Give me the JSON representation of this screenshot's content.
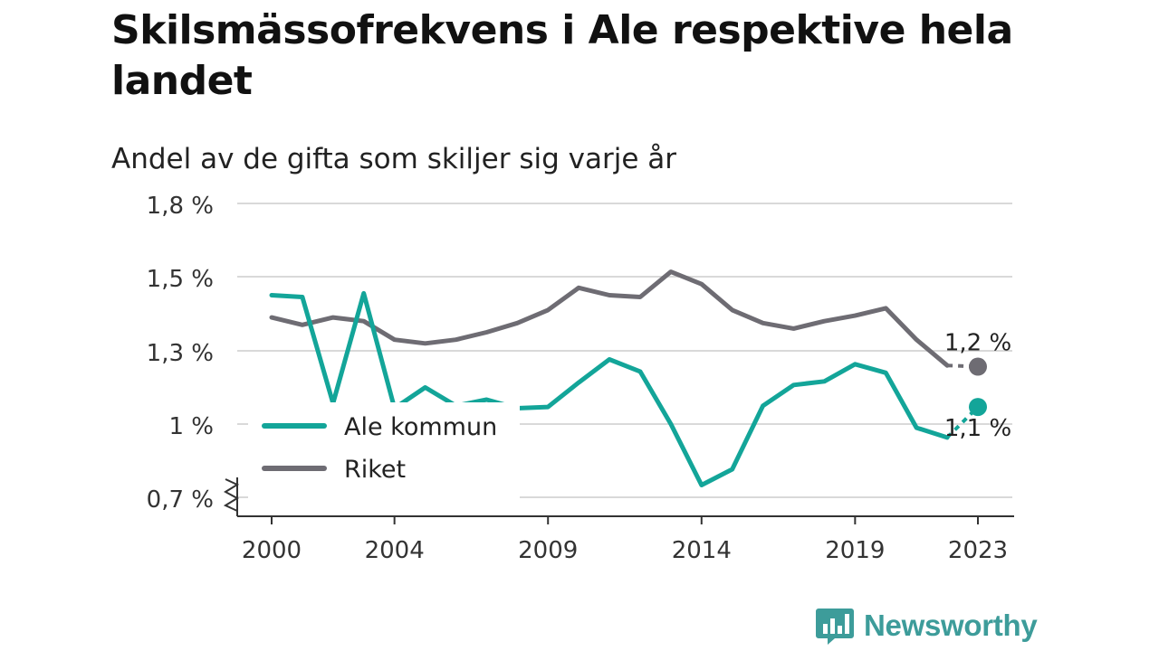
{
  "title": "Skilsmässofrekvens i Ale respektive hela landet",
  "subtitle": "Andel av de gifta som skiljer sig varje år",
  "brand": {
    "name": "Newsworthy"
  },
  "colors": {
    "ale": "#13a599",
    "riket": "#6e6c73",
    "grid": "#d9d9d9",
    "axis": "#333333"
  },
  "chart_data": {
    "type": "line",
    "x": [
      2000,
      2001,
      2002,
      2003,
      2004,
      2005,
      2006,
      2007,
      2008,
      2009,
      2010,
      2011,
      2012,
      2013,
      2014,
      2015,
      2016,
      2017,
      2018,
      2019,
      2020,
      2021,
      2022,
      2023
    ],
    "series": [
      {
        "name": "Ale kommun",
        "values": [
          1.45,
          1.445,
          1.085,
          1.455,
          1.065,
          1.15,
          1.075,
          1.1,
          1.065,
          1.07,
          1.17,
          1.265,
          1.215,
          1.0,
          0.75,
          0.815,
          1.075,
          1.16,
          1.175,
          1.245,
          1.21,
          0.985,
          0.945,
          1.07
        ],
        "end_label": "1,1 %"
      },
      {
        "name": "Riket",
        "values": [
          1.39,
          1.37,
          1.39,
          1.38,
          1.33,
          1.32,
          1.33,
          1.35,
          1.375,
          1.41,
          1.47,
          1.45,
          1.445,
          1.52,
          1.48,
          1.41,
          1.375,
          1.36,
          1.38,
          1.395,
          1.415,
          1.33,
          1.24,
          1.235
        ],
        "end_label": "1,2 %"
      }
    ],
    "y_ticks": [
      {
        "value": 0.7,
        "label": "0,7 %"
      },
      {
        "value": 1.0,
        "label": "1 %"
      },
      {
        "value": 1.3,
        "label": "1,3 %"
      },
      {
        "value": 1.5,
        "label": "1,5 %"
      },
      {
        "value": 1.8,
        "label": "1,8 %"
      }
    ],
    "x_ticks": [
      {
        "value": 2000,
        "label": "2000"
      },
      {
        "value": 2004,
        "label": "2004"
      },
      {
        "value": 2009,
        "label": "2009"
      },
      {
        "value": 2014,
        "label": "2014"
      },
      {
        "value": 2019,
        "label": "2019"
      },
      {
        "value": 2023,
        "label": "2023"
      }
    ],
    "xlim": [
      2000,
      2023
    ],
    "ylim": [
      0.7,
      1.8
    ],
    "y_axis_break": true,
    "grid": true,
    "legend_position": "bottom-left"
  }
}
